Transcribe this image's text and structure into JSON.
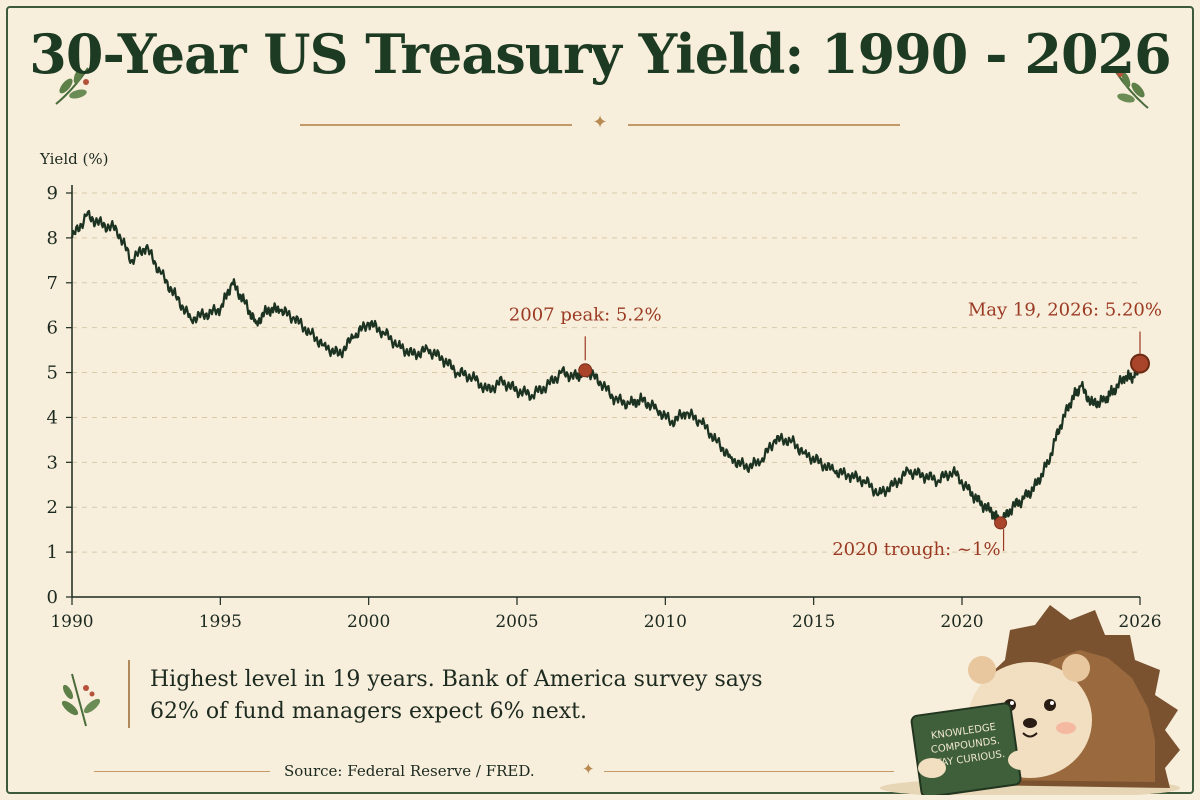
{
  "page": {
    "title": "30-Year US Treasury Yield: 1990 - 2026",
    "note_line1": "Highest level in 19 years. Bank of America survey says",
    "note_line2": "62% of fund managers expect 6% next.",
    "source": "Source: Federal Reserve / FRED.",
    "mascot_book_text": [
      "KNOWLEDGE",
      "COMPOUNDS.",
      "STAY CURIOUS."
    ]
  },
  "colors": {
    "background": "#f7eedc",
    "line": "#1d3322",
    "annotation": "#9b3a22",
    "marker": "#a8452a",
    "accent": "#b88a52",
    "title": "#1d3a22"
  },
  "chart_data": {
    "type": "line",
    "title": "30-Year US Treasury Yield: 1990 - 2026",
    "xlabel": "",
    "ylabel": "Yield (%)",
    "xlim": [
      1990,
      2026
    ],
    "ylim": [
      0,
      9
    ],
    "x_ticks": [
      1990,
      1995,
      2000,
      2005,
      2010,
      2015,
      2020,
      2026
    ],
    "y_ticks": [
      0,
      1,
      2,
      3,
      4,
      5,
      6,
      7,
      8,
      9
    ],
    "grid": "horizontal dashed",
    "series": [
      {
        "x": [
          1990.0,
          1990.5,
          1991.0,
          1991.5,
          1992.0,
          1992.5,
          1993.0,
          1993.5,
          1994.0,
          1994.5,
          1995.0,
          1995.4,
          1995.8,
          1996.2,
          1996.6,
          1997.0,
          1997.5,
          1998.0,
          1998.5,
          1999.0,
          1999.5,
          2000.0,
          2000.5,
          2001.0,
          2001.5,
          2002.0,
          2002.5,
          2003.0,
          2003.5,
          2004.0,
          2004.5,
          2005.0,
          2005.5,
          2006.0,
          2006.5,
          2007.0,
          2007.3,
          2007.8,
          2008.3,
          2008.8,
          2009.2,
          2009.7,
          2010.2,
          2010.7,
          2011.2,
          2011.7,
          2012.2,
          2012.7,
          2013.2,
          2013.7,
          2014.2,
          2014.7,
          2015.2,
          2015.7,
          2016.2,
          2016.7,
          2017.2,
          2017.7,
          2018.2,
          2018.7,
          2019.2,
          2019.7,
          2020.2,
          2020.6,
          2021.0,
          2021.3,
          2021.7,
          2022.1,
          2022.5,
          2022.9,
          2023.3,
          2023.7,
          2024.0,
          2024.4,
          2024.8,
          2025.1,
          2025.5,
          2025.8,
          2026.0
        ],
        "y": [
          8.0,
          8.5,
          8.3,
          8.2,
          7.5,
          7.8,
          7.2,
          6.7,
          6.2,
          6.3,
          6.4,
          7.0,
          6.6,
          6.1,
          6.4,
          6.4,
          6.2,
          5.9,
          5.6,
          5.4,
          5.8,
          6.1,
          5.9,
          5.6,
          5.4,
          5.5,
          5.3,
          5.0,
          4.9,
          4.6,
          4.8,
          4.6,
          4.5,
          4.7,
          5.0,
          4.9,
          5.05,
          4.8,
          4.4,
          4.3,
          4.4,
          4.2,
          3.9,
          4.1,
          3.9,
          3.5,
          3.1,
          2.9,
          3.0,
          3.5,
          3.5,
          3.2,
          3.0,
          2.8,
          2.7,
          2.6,
          2.3,
          2.5,
          2.8,
          2.7,
          2.6,
          2.8,
          2.4,
          2.1,
          1.9,
          1.65,
          2.0,
          2.2,
          2.5,
          3.0,
          3.8,
          4.4,
          4.7,
          4.3,
          4.4,
          4.6,
          4.9,
          4.9,
          5.2
        ]
      }
    ],
    "annotations": [
      {
        "label": "2007 peak: 5.2%",
        "x": 2007.3,
        "y": 5.05
      },
      {
        "label": "2020 trough: ~1%",
        "x": 2021.3,
        "y": 1.65
      },
      {
        "label": "May 19, 2026: 5.20%",
        "x": 2026.0,
        "y": 5.2
      }
    ]
  }
}
